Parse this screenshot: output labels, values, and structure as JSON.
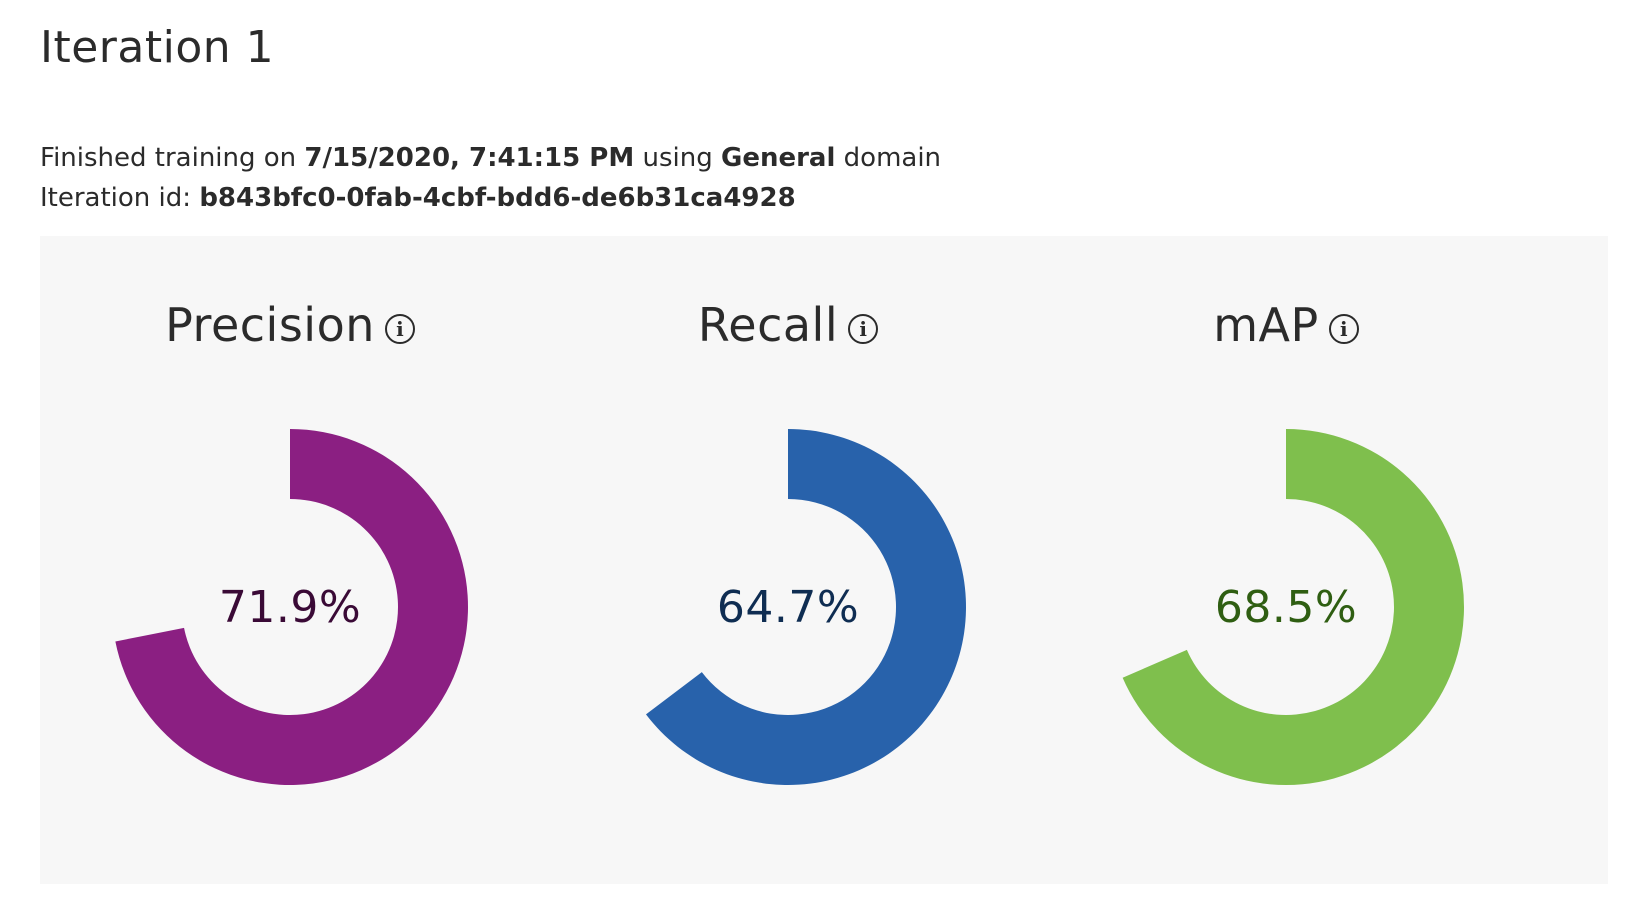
{
  "page": {
    "title": "Iteration 1",
    "finished_prefix": "Finished training on ",
    "finished_date": "7/15/2020, 7:41:15 PM",
    "finished_mid": " using ",
    "domain_name": "General",
    "finished_suffix": " domain",
    "iteration_id_label": "Iteration id: ",
    "iteration_id": "b843bfc0-0fab-4cbf-bdd6-de6b31ca4928"
  },
  "metrics": [
    {
      "label": "Precision",
      "value_text": "71.9%",
      "value": 0.719,
      "color": "#8b1f82",
      "text_color": "#3a0a36",
      "icon": "info-icon"
    },
    {
      "label": "Recall",
      "value_text": "64.7%",
      "value": 0.647,
      "color": "#2862ab",
      "text_color": "#0f2d52",
      "icon": "info-icon"
    },
    {
      "label": "mAP",
      "value_text": "68.5%",
      "value": 0.685,
      "color": "#7fbf4d",
      "text_color": "#2f5e12",
      "icon": "info-icon"
    }
  ]
}
